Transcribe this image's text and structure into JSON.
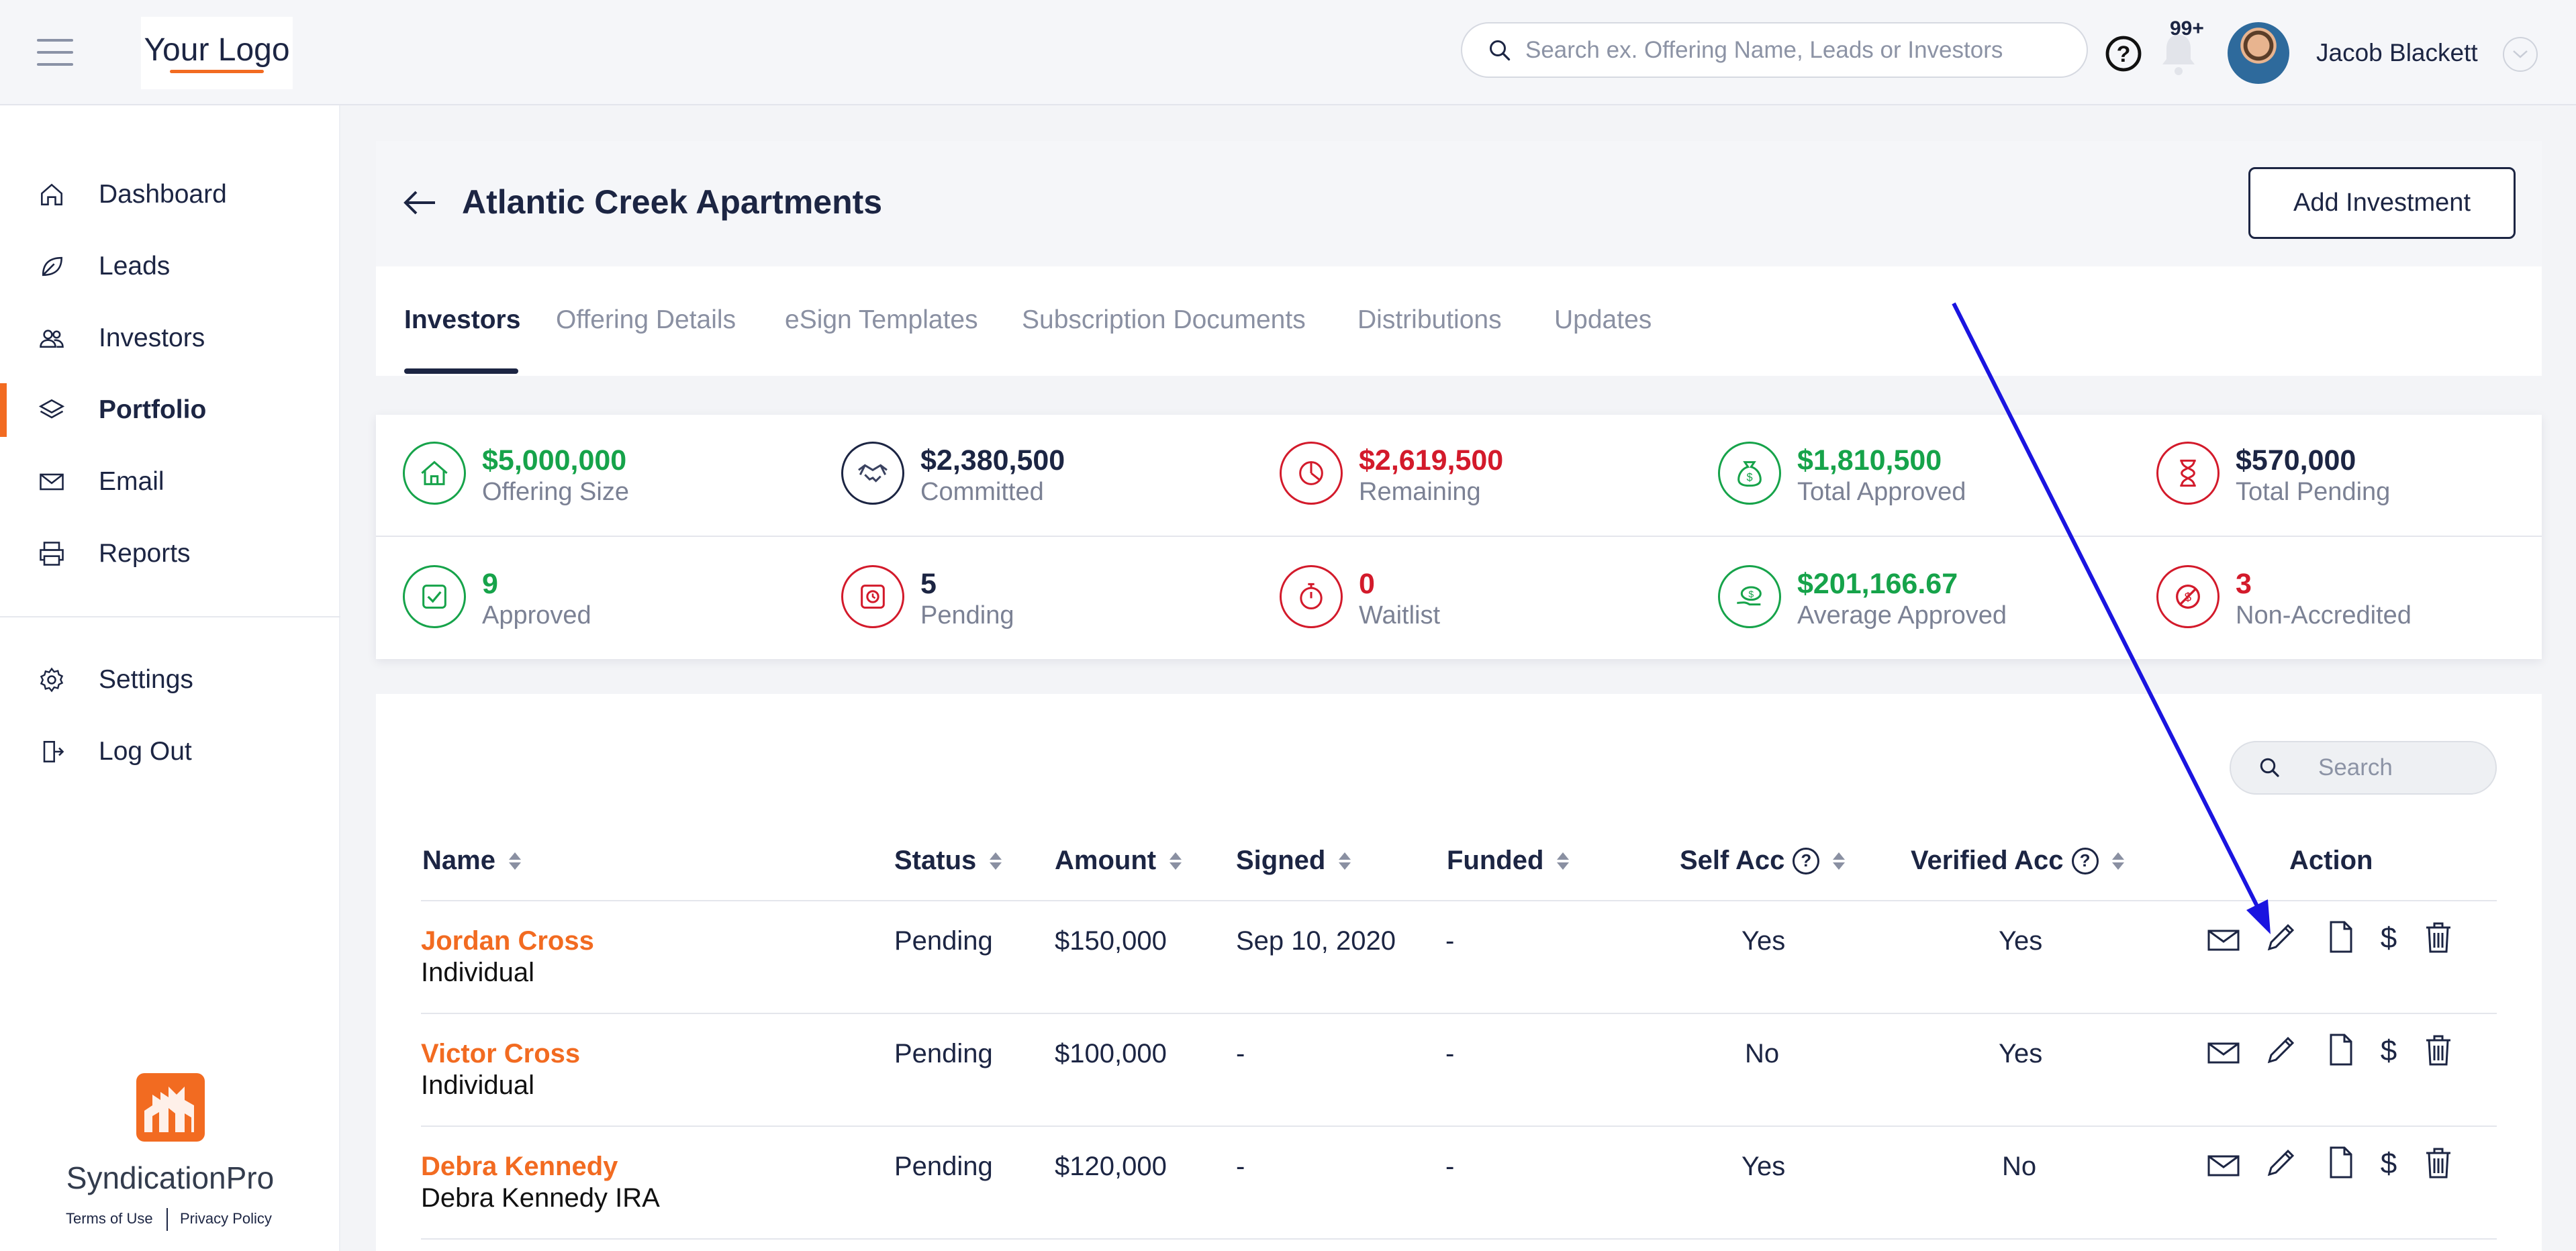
{
  "header": {
    "logo_text": "Your Logo",
    "search_placeholder": "Search ex. Offering Name, Leads or Investors",
    "notifications_badge": "99+",
    "user_name": "Jacob Blackett"
  },
  "sidebar": {
    "items": [
      {
        "label": "Dashboard",
        "icon": "home-icon"
      },
      {
        "label": "Leads",
        "icon": "leaf-icon"
      },
      {
        "label": "Investors",
        "icon": "users-icon"
      },
      {
        "label": "Portfolio",
        "icon": "layers-icon",
        "active": true
      },
      {
        "label": "Email",
        "icon": "mail-icon"
      },
      {
        "label": "Reports",
        "icon": "printer-icon"
      }
    ],
    "bottom_items": [
      {
        "label": "Settings",
        "icon": "gear-icon"
      },
      {
        "label": "Log Out",
        "icon": "logout-icon"
      }
    ],
    "brand_name": "SyndicationPro",
    "terms_label": "Terms of Use",
    "privacy_label": "Privacy Policy"
  },
  "page": {
    "title": "Atlantic Creek Apartments",
    "add_button_label": "Add Investment"
  },
  "tabs": [
    {
      "label": "Investors",
      "active": true
    },
    {
      "label": "Offering Details"
    },
    {
      "label": "eSign Templates"
    },
    {
      "label": "Subscription Documents"
    },
    {
      "label": "Distributions"
    },
    {
      "label": "Updates"
    }
  ],
  "stats": [
    {
      "value": "$5,000,000",
      "label": "Offering Size",
      "color": "green",
      "icon": "house-icon"
    },
    {
      "value": "$2,380,500",
      "label": "Committed",
      "color": "navy",
      "icon": "handshake-icon"
    },
    {
      "value": "$2,619,500",
      "label": "Remaining",
      "color": "red",
      "icon": "pie-clock-icon"
    },
    {
      "value": "$1,810,500",
      "label": "Total Approved",
      "color": "green",
      "icon": "money-bag-icon"
    },
    {
      "value": "$570,000",
      "label": "Total Pending",
      "color": "red",
      "icon": "hourglass-icon"
    },
    {
      "value": "9",
      "label": "Approved",
      "color": "green",
      "icon": "approved-doc-icon"
    },
    {
      "value": "5",
      "label": "Pending",
      "color": "red",
      "icon": "pending-doc-icon"
    },
    {
      "value": "0",
      "label": "Waitlist",
      "color": "red",
      "icon": "stopwatch-icon"
    },
    {
      "value": "$201,166.67",
      "label": "Average Approved",
      "color": "green",
      "icon": "money-hand-icon"
    },
    {
      "value": "3",
      "label": "Non-Accredited",
      "color": "red",
      "icon": "no-money-icon"
    }
  ],
  "table": {
    "search_placeholder": "Search",
    "columns": [
      "Name",
      "Status",
      "Amount",
      "Signed",
      "Funded",
      "Self Acc",
      "Verified Acc",
      "Action"
    ],
    "rows": [
      {
        "name": "Jordan Cross",
        "type": "Individual",
        "status": "Pending",
        "amount": "$150,000",
        "signed": "Sep 10, 2020",
        "funded": "-",
        "self_acc": "Yes",
        "verified_acc": "Yes"
      },
      {
        "name": "Victor Cross",
        "type": "Individual",
        "status": "Pending",
        "amount": "$100,000",
        "signed": "-",
        "funded": "-",
        "self_acc": "No",
        "verified_acc": "Yes"
      },
      {
        "name": "Debra Kennedy",
        "type": "Debra Kennedy IRA",
        "status": "Pending",
        "amount": "$120,000",
        "signed": "-",
        "funded": "-",
        "self_acc": "Yes",
        "verified_acc": "No"
      }
    ]
  },
  "colors": {
    "accent_orange": "#f26b21",
    "navy": "#1c2543",
    "green": "#16a34a",
    "red": "#d31a2b",
    "annotation_arrow": "#1a14e0"
  }
}
